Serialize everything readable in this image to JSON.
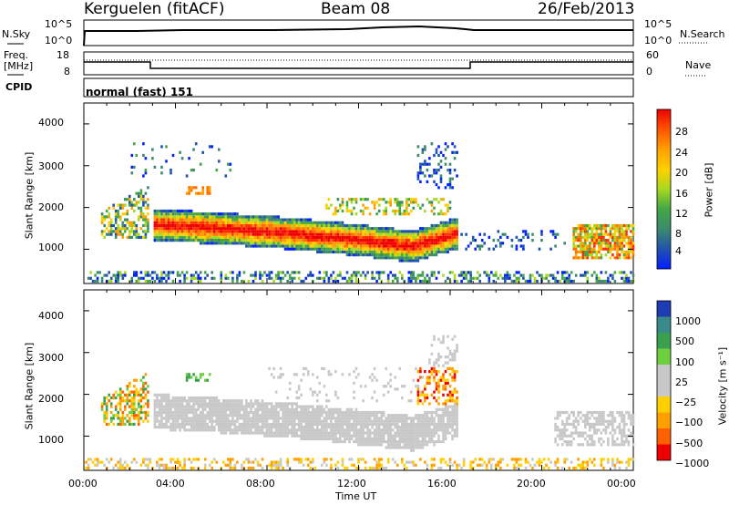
{
  "header": {
    "radar": "Kerguelen (fitACF)",
    "beam": "Beam 08",
    "date": "26/Feb/2013"
  },
  "top_panel": {
    "left_label": "N.Sky",
    "left_ticks": [
      "10^5",
      "10^0"
    ],
    "right_label": "N.Search",
    "right_ticks": [
      "10^5",
      "10^0"
    ]
  },
  "freq_panel": {
    "left_label_1": "Freq.",
    "left_label_2": "[MHz]",
    "left_ticks": [
      "18",
      "8"
    ],
    "right_label": "Nave",
    "right_ticks": [
      "60",
      "0"
    ]
  },
  "cpid_panel": {
    "label": "CPID",
    "value": "normal (fast) 151"
  },
  "power_panel": {
    "ylabel": "Slant Range [km]",
    "yticks": [
      "4000",
      "3000",
      "2000",
      "1000"
    ],
    "colorbar_label": "Power [dB]",
    "colorbar_ticks": [
      "28",
      "24",
      "20",
      "16",
      "12",
      "8",
      "4"
    ],
    "colors": [
      "#0020ff",
      "#2050b0",
      "#3c8a6e",
      "#45a845",
      "#a8d820",
      "#ffd000",
      "#ffa000",
      "#ff7000",
      "#ff3000",
      "#ee0000"
    ]
  },
  "velocity_panel": {
    "ylabel": "Slant Range [km]",
    "yticks": [
      "4000",
      "3000",
      "2000",
      "1000"
    ],
    "colorbar_label": "Velocity [m s⁻¹]",
    "colorbar_ticks": [
      "1000",
      "500",
      "100",
      "25",
      "−25",
      "−100",
      "−500",
      "−1000"
    ],
    "colors": [
      "#1e3cb4",
      "#3a8a8a",
      "#3aa050",
      "#6cd040",
      "#c8c8c8",
      "#c8c8c8",
      "#ffd000",
      "#ffa000",
      "#ff6000",
      "#ee0000"
    ]
  },
  "xaxis": {
    "label": "Time UT",
    "ticks": [
      "00:00",
      "04:00",
      "08:00",
      "12:00",
      "16:00",
      "20:00",
      "00:00"
    ]
  },
  "chart_data": [
    {
      "type": "line",
      "title": "N.Sky / N.Search",
      "x": [
        "00:00",
        "04:00",
        "08:00",
        "12:00",
        "14:30",
        "17:00",
        "20:00",
        "24:00"
      ],
      "series": [
        {
          "values_log10": [
            4.2,
            4.2,
            4.2,
            4.4,
            4.8,
            4.2,
            4.2,
            4.2
          ]
        }
      ],
      "ylim": [
        0,
        5
      ]
    },
    {
      "type": "line",
      "title": "Freq. [MHz] / Nave",
      "x": [
        "00:00",
        "02:50",
        "03:00",
        "17:00",
        "17:10",
        "24:00"
      ],
      "series": [
        {
          "name": "Freq.",
          "values": [
            11.5,
            11.5,
            9.3,
            9.3,
            11.5,
            11.5
          ]
        },
        {
          "name": "Nave",
          "values": [
            43,
            43,
            43,
            43,
            43,
            43
          ]
        }
      ],
      "ylim": [
        8,
        18
      ]
    },
    {
      "type": "heatmap",
      "title": "Power [dB]",
      "x_range_hours": [
        0,
        24
      ],
      "y_range_km": [
        180,
        4500
      ],
      "color_scale": [
        0,
        32
      ],
      "major_echo_band": {
        "start_hour": 3.0,
        "end_hour": 16.5,
        "range_km": [
          900,
          1800
        ]
      },
      "peak_power_db": 30
    },
    {
      "type": "heatmap",
      "title": "Velocity [m s⁻¹]",
      "x_range_hours": [
        0,
        24
      ],
      "y_range_km": [
        180,
        4500
      ],
      "color_scale": [
        -1000,
        1000
      ],
      "dominant_value": "ground scatter (~0 m/s)"
    }
  ]
}
